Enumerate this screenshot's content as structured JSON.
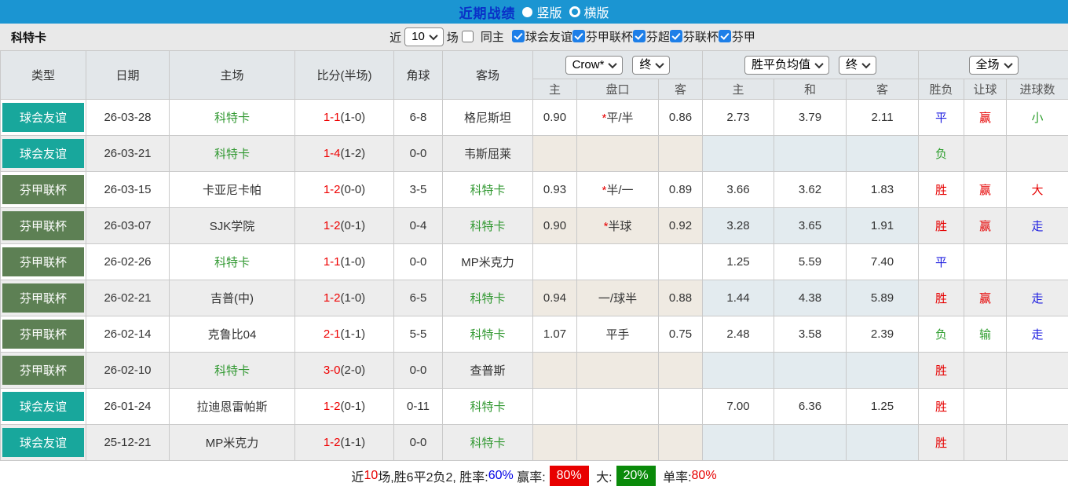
{
  "topbar": {
    "title": "近期战绩",
    "view_options": [
      {
        "label": "竖版",
        "selected": true
      },
      {
        "label": "横版",
        "selected": false
      }
    ]
  },
  "filterbar": {
    "team": "科特卡",
    "near_label": "近",
    "rounds_value": "10",
    "rounds_suffix": "场",
    "checkboxes": [
      {
        "label": "同主",
        "checked": false
      },
      {
        "label": "球会友谊",
        "checked": true
      },
      {
        "label": "芬甲联杯",
        "checked": true
      },
      {
        "label": "芬超",
        "checked": true
      },
      {
        "label": "芬联杯",
        "checked": true
      },
      {
        "label": "芬甲",
        "checked": true
      }
    ]
  },
  "table": {
    "main_headers": [
      "类型",
      "日期",
      "主场",
      "比分(半场)",
      "角球",
      "客场"
    ],
    "odds_selects": [
      {
        "label": "Crow*"
      },
      {
        "label": "终"
      }
    ],
    "avg_selects": [
      {
        "label": "胜平负均值"
      },
      {
        "label": "终"
      }
    ],
    "result_select": {
      "label": "全场"
    },
    "sub_headers": [
      "主",
      "盘口",
      "客",
      "主",
      "和",
      "客",
      "胜负",
      "让球",
      "进球数"
    ],
    "colors": {
      "friendly_badge": "#18a79c",
      "cup_badge": "#5d8054",
      "team_green": "#339933",
      "score_red": "#ee0000",
      "win_red": "#e60000",
      "draw_blue": "#1d1de0",
      "lose_green": "#2e9e2e"
    },
    "rows": [
      {
        "type": "球会友谊",
        "type_style": "friendly",
        "date": "26-03-28",
        "home": "科特卡",
        "home_green": true,
        "score_ft": "1-1",
        "score_ht": "(1-0)",
        "corner": "6-8",
        "away": "格尼斯坦",
        "away_green": false,
        "odds_home": "0.90",
        "handicap": "平/半",
        "handicap_star": true,
        "odds_away": "0.86",
        "avg_win": "2.73",
        "avg_draw": "3.79",
        "avg_lose": "2.11",
        "result": "平",
        "result_color": "blue",
        "handicap_result": "赢",
        "handicap_result_color": "red",
        "goals": "小",
        "goals_color": "green"
      },
      {
        "type": "球会友谊",
        "type_style": "friendly",
        "date": "26-03-21",
        "home": "科特卡",
        "home_green": true,
        "score_ft": "1-4",
        "score_ht": "(1-2)",
        "corner": "0-0",
        "away": "韦斯屈莱",
        "away_green": false,
        "odds_home": "",
        "handicap": "",
        "handicap_star": false,
        "odds_away": "",
        "avg_win": "",
        "avg_draw": "",
        "avg_lose": "",
        "result": "负",
        "result_color": "green",
        "handicap_result": "",
        "handicap_result_color": "",
        "goals": "",
        "goals_color": ""
      },
      {
        "type": "芬甲联杯",
        "type_style": "cup",
        "date": "26-03-15",
        "home": "卡亚尼卡帕",
        "home_green": false,
        "score_ft": "1-2",
        "score_ht": "(0-0)",
        "corner": "3-5",
        "away": "科特卡",
        "away_green": true,
        "odds_home": "0.93",
        "handicap": "半/一",
        "handicap_star": true,
        "odds_away": "0.89",
        "avg_win": "3.66",
        "avg_draw": "3.62",
        "avg_lose": "1.83",
        "result": "胜",
        "result_color": "red",
        "handicap_result": "赢",
        "handicap_result_color": "red",
        "goals": "大",
        "goals_color": "red"
      },
      {
        "type": "芬甲联杯",
        "type_style": "cup",
        "date": "26-03-07",
        "home": "SJK学院",
        "home_green": false,
        "score_ft": "1-2",
        "score_ht": "(0-1)",
        "corner": "0-4",
        "away": "科特卡",
        "away_green": true,
        "odds_home": "0.90",
        "handicap": "半球",
        "handicap_star": true,
        "odds_away": "0.92",
        "avg_win": "3.28",
        "avg_draw": "3.65",
        "avg_lose": "1.91",
        "result": "胜",
        "result_color": "red",
        "handicap_result": "赢",
        "handicap_result_color": "red",
        "goals": "走",
        "goals_color": "blue"
      },
      {
        "type": "芬甲联杯",
        "type_style": "cup",
        "date": "26-02-26",
        "home": "科特卡",
        "home_green": true,
        "score_ft": "1-1",
        "score_ht": "(1-0)",
        "corner": "0-0",
        "away": "MP米克力",
        "away_green": false,
        "odds_home": "",
        "handicap": "",
        "handicap_star": false,
        "odds_away": "",
        "avg_win": "1.25",
        "avg_draw": "5.59",
        "avg_lose": "7.40",
        "result": "平",
        "result_color": "blue",
        "handicap_result": "",
        "handicap_result_color": "",
        "goals": "",
        "goals_color": ""
      },
      {
        "type": "芬甲联杯",
        "type_style": "cup",
        "date": "26-02-21",
        "home": "吉普(中)",
        "home_green": false,
        "score_ft": "1-2",
        "score_ht": "(1-0)",
        "corner": "6-5",
        "away": "科特卡",
        "away_green": true,
        "odds_home": "0.94",
        "handicap": "一/球半",
        "handicap_star": false,
        "odds_away": "0.88",
        "avg_win": "1.44",
        "avg_draw": "4.38",
        "avg_lose": "5.89",
        "result": "胜",
        "result_color": "red",
        "handicap_result": "赢",
        "handicap_result_color": "red",
        "goals": "走",
        "goals_color": "blue"
      },
      {
        "type": "芬甲联杯",
        "type_style": "cup",
        "date": "26-02-14",
        "home": "克鲁比04",
        "home_green": false,
        "score_ft": "2-1",
        "score_ht": "(1-1)",
        "corner": "5-5",
        "away": "科特卡",
        "away_green": true,
        "odds_home": "1.07",
        "handicap": "平手",
        "handicap_star": false,
        "odds_away": "0.75",
        "avg_win": "2.48",
        "avg_draw": "3.58",
        "avg_lose": "2.39",
        "result": "负",
        "result_color": "green",
        "handicap_result": "输",
        "handicap_result_color": "green",
        "goals": "走",
        "goals_color": "blue"
      },
      {
        "type": "芬甲联杯",
        "type_style": "cup",
        "date": "26-02-10",
        "home": "科特卡",
        "home_green": true,
        "score_ft": "3-0",
        "score_ht": "(2-0)",
        "corner": "0-0",
        "away": "查普斯",
        "away_green": false,
        "odds_home": "",
        "handicap": "",
        "handicap_star": false,
        "odds_away": "",
        "avg_win": "",
        "avg_draw": "",
        "avg_lose": "",
        "result": "胜",
        "result_color": "red",
        "handicap_result": "",
        "handicap_result_color": "",
        "goals": "",
        "goals_color": ""
      },
      {
        "type": "球会友谊",
        "type_style": "friendly",
        "date": "26-01-24",
        "home": "拉迪恩雷帕斯",
        "home_green": false,
        "score_ft": "1-2",
        "score_ht": "(0-1)",
        "corner": "0-11",
        "away": "科特卡",
        "away_green": true,
        "odds_home": "",
        "handicap": "",
        "handicap_star": false,
        "odds_away": "",
        "avg_win": "7.00",
        "avg_draw": "6.36",
        "avg_lose": "1.25",
        "result": "胜",
        "result_color": "red",
        "handicap_result": "",
        "handicap_result_color": "",
        "goals": "",
        "goals_color": ""
      },
      {
        "type": "球会友谊",
        "type_style": "friendly",
        "date": "25-12-21",
        "home": "MP米克力",
        "home_green": false,
        "score_ft": "1-2",
        "score_ht": "(1-1)",
        "corner": "0-0",
        "away": "科特卡",
        "away_green": true,
        "odds_home": "",
        "handicap": "",
        "handicap_star": false,
        "odds_away": "",
        "avg_win": "",
        "avg_draw": "",
        "avg_lose": "",
        "result": "胜",
        "result_color": "red",
        "handicap_result": "",
        "handicap_result_color": "",
        "goals": "",
        "goals_color": ""
      }
    ]
  },
  "summary": {
    "segments": [
      {
        "text": "近",
        "style": "plain"
      },
      {
        "text": "10",
        "style": "red"
      },
      {
        "text": "场,胜6平2负2, 胜率:",
        "style": "plain"
      },
      {
        "text": "60%",
        "style": "blue"
      },
      {
        "text": " 赢率:",
        "style": "plain"
      },
      {
        "text": "80%",
        "style": "badge-red"
      },
      {
        "text": " 大:",
        "style": "plain"
      },
      {
        "text": "20%",
        "style": "badge-green"
      },
      {
        "text": " 单率:",
        "style": "plain"
      },
      {
        "text": "80%",
        "style": "red"
      }
    ]
  }
}
